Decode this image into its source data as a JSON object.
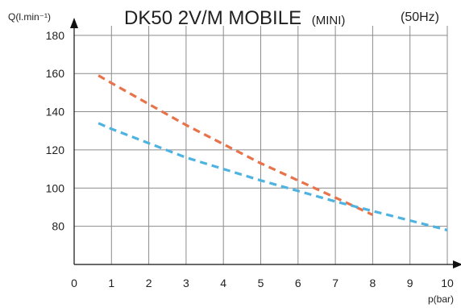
{
  "chart_data": {
    "type": "line",
    "title": "DK50 2V/M MOBILE",
    "title_suffix": "(MINI)",
    "note": "(50Hz)",
    "xlabel": "p(bar)",
    "ylabel": "Q(l.min⁻¹)",
    "xlim": [
      0,
      10.3
    ],
    "ylim": [
      60,
      185
    ],
    "x_ticks": [
      0,
      1,
      2,
      3,
      4,
      5,
      6,
      7,
      8,
      9,
      10
    ],
    "y_ticks": [
      80,
      100,
      120,
      140,
      160,
      180
    ],
    "grid": true,
    "series": [
      {
        "color": "#e8734a",
        "style": "dashed",
        "x": [
          0.65,
          1,
          2,
          3,
          4,
          5,
          6,
          7,
          8
        ],
        "y": [
          159,
          155,
          144,
          133,
          123,
          113,
          104,
          95,
          86
        ]
      },
      {
        "color": "#4eb3e0",
        "style": "dashed",
        "x": [
          0.65,
          1,
          2,
          3,
          4,
          5,
          6,
          7,
          8,
          9,
          10
        ],
        "y": [
          134,
          131,
          123.5,
          116,
          110,
          104,
          98.5,
          93,
          88,
          83,
          78
        ]
      }
    ]
  }
}
